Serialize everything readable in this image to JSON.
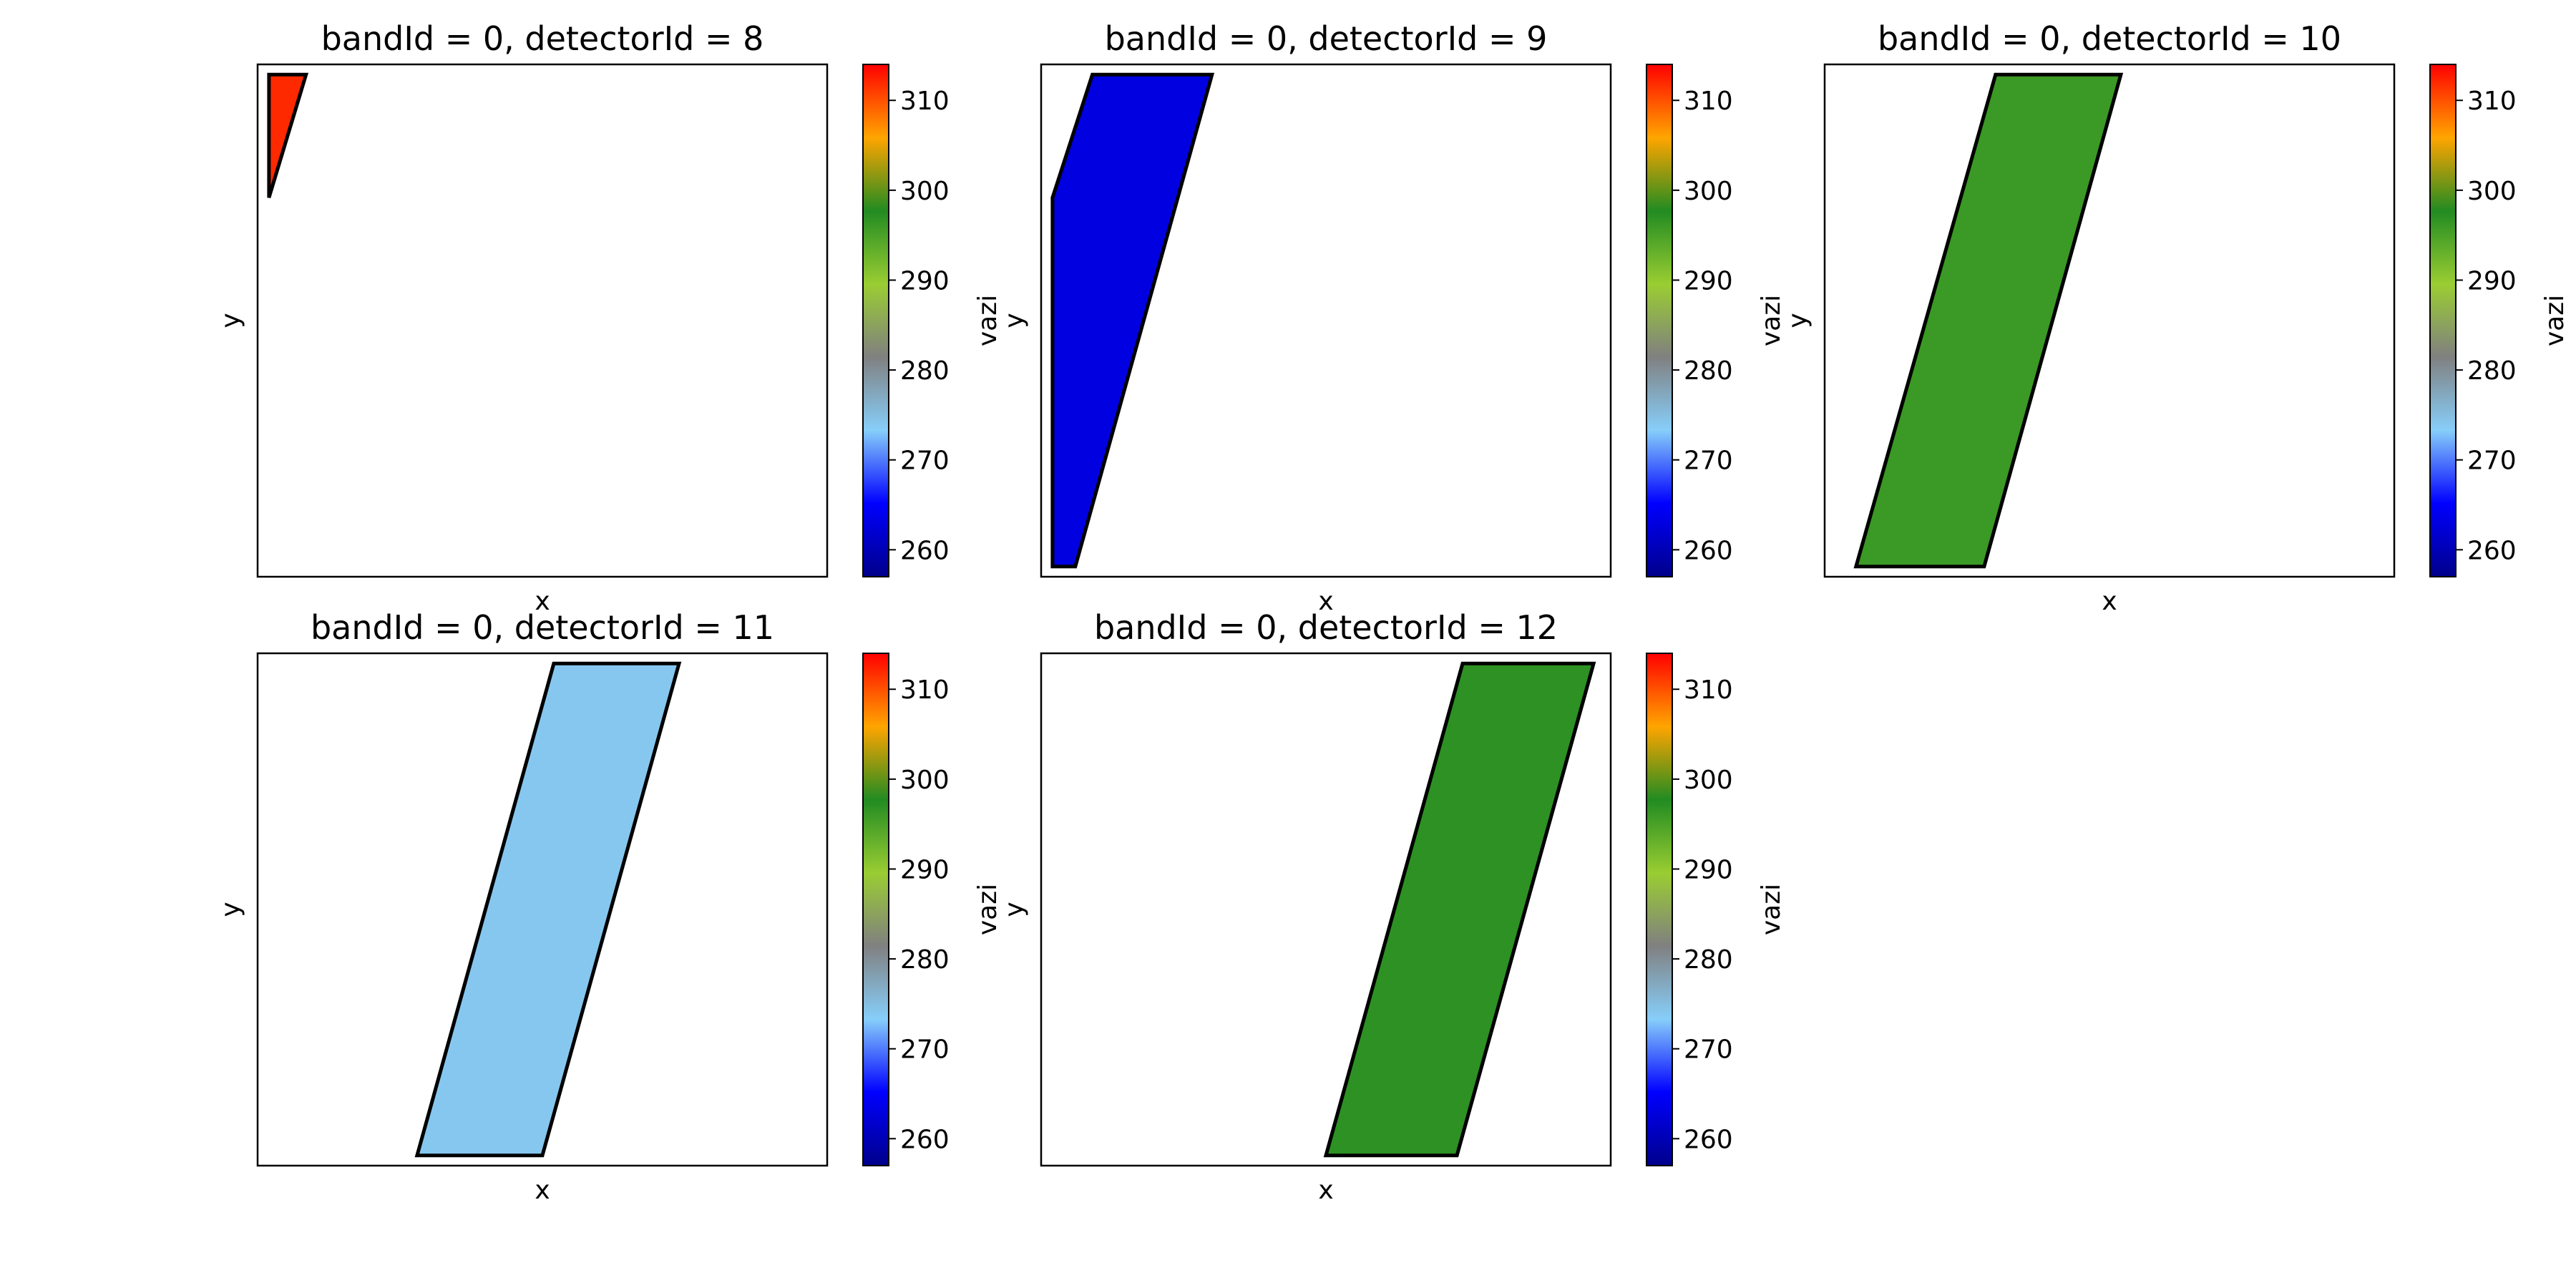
{
  "chart_data": [
    {
      "type": "heatmap",
      "title": "bandId = 0, detectorId = 8",
      "xlabel": "x",
      "ylabel": "y",
      "colorbar_label": "vazi",
      "colorbar_ticks": [
        260,
        270,
        280,
        290,
        300,
        310
      ],
      "clim": [
        257,
        314
      ],
      "value": 312,
      "footprint": "narrow triangular strip in the top-left corner"
    },
    {
      "type": "heatmap",
      "title": "bandId = 0, detectorId = 9",
      "xlabel": "x",
      "ylabel": "y",
      "colorbar_label": "vazi",
      "colorbar_ticks": [
        260,
        270,
        280,
        290,
        300,
        310
      ],
      "clim": [
        257,
        314
      ],
      "value": 263,
      "footprint": "slanted strip along the left edge"
    },
    {
      "type": "heatmap",
      "title": "bandId = 0, detectorId = 10",
      "xlabel": "x",
      "ylabel": "y",
      "colorbar_label": "vazi",
      "colorbar_ticks": [
        260,
        270,
        280,
        290,
        300,
        310
      ],
      "clim": [
        257,
        314
      ],
      "value": 296,
      "footprint": "slanted parallelogram left of centre"
    },
    {
      "type": "heatmap",
      "title": "bandId = 0, detectorId = 11",
      "xlabel": "x",
      "ylabel": "y",
      "colorbar_label": "vazi",
      "colorbar_ticks": [
        260,
        270,
        280,
        290,
        300,
        310
      ],
      "clim": [
        257,
        314
      ],
      "value": 274,
      "footprint": "slanted parallelogram centre"
    },
    {
      "type": "heatmap",
      "title": "bandId = 0, detectorId = 12",
      "xlabel": "x",
      "ylabel": "y",
      "colorbar_label": "vazi",
      "colorbar_ticks": [
        260,
        270,
        280,
        290,
        300,
        310
      ],
      "clim": [
        257,
        314
      ],
      "value": 297,
      "footprint": "slanted parallelogram right of centre"
    }
  ],
  "colors": {
    "colormap_stops": [
      "#00008b",
      "#0000ff",
      "#87cefa",
      "#808080",
      "#9acd32",
      "#228b22",
      "#ffa500",
      "#ff0000"
    ],
    "footprint_outline": "#000000"
  }
}
